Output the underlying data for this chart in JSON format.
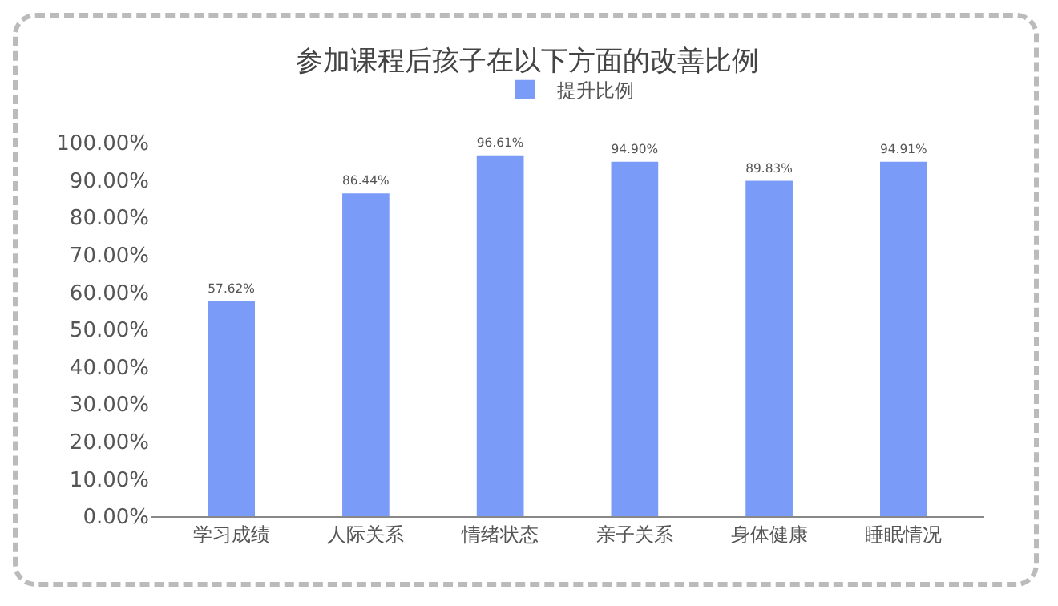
{
  "chart_data": {
    "type": "bar",
    "title": "参加课程后孩子在以下方面的改善比例",
    "categories": [
      "学习成绩",
      "人际关系",
      "情绪状态",
      "亲子关系",
      "身体健康",
      "睡眠情况"
    ],
    "series": [
      {
        "name": "提升比例",
        "color": "#7a9cf8",
        "values": [
          57.62,
          86.44,
          96.61,
          94.9,
          89.83,
          94.91
        ],
        "value_labels": [
          "57.62%",
          "86.44%",
          "96.61%",
          "94.90%",
          "89.83%",
          "94.91%"
        ]
      }
    ],
    "ylim": [
      0,
      100
    ],
    "yticks": [
      {
        "value": 0,
        "label": "0.00%"
      },
      {
        "value": 10,
        "label": "10.00%"
      },
      {
        "value": 20,
        "label": "20.00%"
      },
      {
        "value": 30,
        "label": "30.00%"
      },
      {
        "value": 40,
        "label": "40.00%"
      },
      {
        "value": 50,
        "label": "50.00%"
      },
      {
        "value": 60,
        "label": "60.00%"
      },
      {
        "value": 70,
        "label": "70.00%"
      },
      {
        "value": 80,
        "label": "80.00%"
      },
      {
        "value": 90,
        "label": "90.00%"
      },
      {
        "value": 100,
        "label": "100.00%"
      }
    ],
    "grid": false,
    "legend": "top"
  }
}
